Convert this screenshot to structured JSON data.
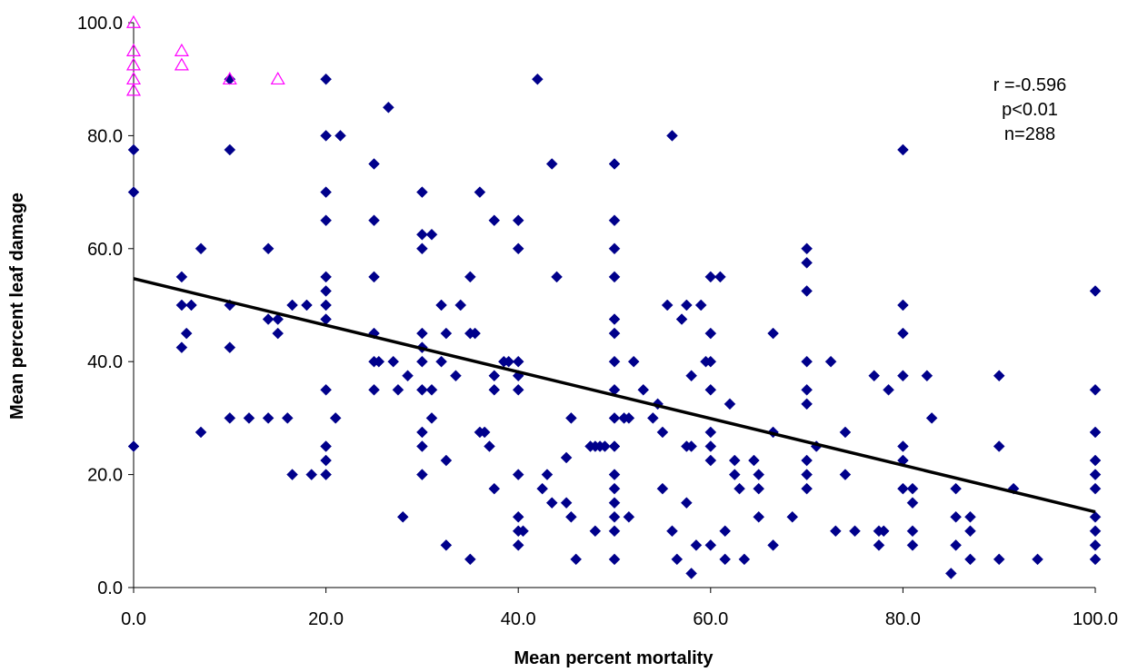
{
  "chart_data": {
    "type": "scatter",
    "xlabel": "Mean percent mortality",
    "ylabel": "Mean percent leaf damage",
    "xlim": [
      0,
      100
    ],
    "ylim": [
      0,
      100
    ],
    "x_ticks": [
      "0.0",
      "20.0",
      "40.0",
      "60.0",
      "80.0",
      "100.0"
    ],
    "y_ticks": [
      "0.0",
      "20.0",
      "40.0",
      "60.0",
      "80.0",
      "100.0"
    ],
    "annotations": [
      "r =-0.596",
      "p<0.01",
      "n=288"
    ],
    "grid": false,
    "legend": "none",
    "trendline": {
      "x": [
        0,
        100
      ],
      "y": [
        54.7,
        13.4
      ]
    },
    "series": [
      {
        "marker": "diamond",
        "color": "#00008b",
        "points": [
          [
            0,
            77.5
          ],
          [
            0,
            70
          ],
          [
            0,
            25
          ],
          [
            5,
            55
          ],
          [
            5,
            50
          ],
          [
            5,
            42.5
          ],
          [
            5.5,
            45
          ],
          [
            6,
            50
          ],
          [
            7,
            60
          ],
          [
            7,
            27.5
          ],
          [
            10,
            90
          ],
          [
            10,
            77.5
          ],
          [
            10,
            50
          ],
          [
            10,
            42.5
          ],
          [
            10,
            30
          ],
          [
            12,
            30
          ],
          [
            14,
            60
          ],
          [
            14,
            47.5
          ],
          [
            14,
            30
          ],
          [
            15,
            47.5
          ],
          [
            15,
            45
          ],
          [
            16,
            30
          ],
          [
            16.5,
            50
          ],
          [
            16.5,
            20
          ],
          [
            18,
            50
          ],
          [
            18.5,
            20
          ],
          [
            20,
            90
          ],
          [
            20,
            80
          ],
          [
            20,
            70
          ],
          [
            20,
            65
          ],
          [
            20,
            55
          ],
          [
            20,
            52.5
          ],
          [
            20,
            50
          ],
          [
            20,
            47.5
          ],
          [
            20,
            35
          ],
          [
            20,
            25
          ],
          [
            20,
            22.5
          ],
          [
            20,
            20
          ],
          [
            21,
            30
          ],
          [
            21.5,
            80
          ],
          [
            25,
            75
          ],
          [
            25,
            65
          ],
          [
            25,
            55
          ],
          [
            25,
            45
          ],
          [
            25,
            40
          ],
          [
            25,
            35
          ],
          [
            25.5,
            40
          ],
          [
            26.5,
            85
          ],
          [
            27,
            40
          ],
          [
            27.5,
            35
          ],
          [
            28,
            12.5
          ],
          [
            28.5,
            37.5
          ],
          [
            30,
            70
          ],
          [
            30,
            62.5
          ],
          [
            30,
            60
          ],
          [
            30,
            45
          ],
          [
            30,
            42.5
          ],
          [
            30,
            40
          ],
          [
            30,
            35
          ],
          [
            30,
            27.5
          ],
          [
            30,
            25
          ],
          [
            30,
            20
          ],
          [
            31,
            62.5
          ],
          [
            31,
            30
          ],
          [
            31,
            35
          ],
          [
            32,
            50
          ],
          [
            32,
            40
          ],
          [
            32.5,
            45
          ],
          [
            32.5,
            22.5
          ],
          [
            32.5,
            7.5
          ],
          [
            33.5,
            37.5
          ],
          [
            34,
            50
          ],
          [
            35,
            55
          ],
          [
            35,
            45
          ],
          [
            35,
            5
          ],
          [
            35.5,
            45
          ],
          [
            36,
            70
          ],
          [
            36,
            27.5
          ],
          [
            36.5,
            27.5
          ],
          [
            37,
            25
          ],
          [
            37.5,
            65
          ],
          [
            37.5,
            37.5
          ],
          [
            37.5,
            35
          ],
          [
            37.5,
            17.5
          ],
          [
            38.5,
            40
          ],
          [
            39,
            40
          ],
          [
            40,
            65
          ],
          [
            40,
            60
          ],
          [
            40,
            40
          ],
          [
            40,
            37.5
          ],
          [
            40,
            35
          ],
          [
            40,
            20
          ],
          [
            40,
            12.5
          ],
          [
            40,
            10
          ],
          [
            40,
            7.5
          ],
          [
            40.5,
            10
          ],
          [
            42,
            90
          ],
          [
            42.5,
            17.5
          ],
          [
            43,
            20
          ],
          [
            43.5,
            15
          ],
          [
            43.5,
            75
          ],
          [
            44,
            55
          ],
          [
            45,
            23
          ],
          [
            45,
            15
          ],
          [
            45.5,
            12.5
          ],
          [
            45.5,
            30
          ],
          [
            46,
            5
          ],
          [
            47.5,
            25
          ],
          [
            48,
            10
          ],
          [
            48,
            25
          ],
          [
            48.5,
            25
          ],
          [
            49,
            25
          ],
          [
            50,
            75
          ],
          [
            50,
            65
          ],
          [
            50,
            60
          ],
          [
            50,
            55
          ],
          [
            50,
            47.5
          ],
          [
            50,
            45
          ],
          [
            50,
            40
          ],
          [
            50,
            35
          ],
          [
            50,
            30
          ],
          [
            50,
            25
          ],
          [
            50,
            20
          ],
          [
            50,
            17.5
          ],
          [
            50,
            15
          ],
          [
            50,
            12.5
          ],
          [
            50,
            10
          ],
          [
            50,
            5
          ],
          [
            51,
            30
          ],
          [
            51.5,
            12.5
          ],
          [
            51.5,
            30
          ],
          [
            52,
            40
          ],
          [
            53,
            35
          ],
          [
            54,
            30
          ],
          [
            54.5,
            32.5
          ],
          [
            55,
            17.5
          ],
          [
            55,
            27.5
          ],
          [
            55.5,
            50
          ],
          [
            56,
            10
          ],
          [
            56,
            80
          ],
          [
            56.5,
            5
          ],
          [
            57,
            47.5
          ],
          [
            57.5,
            50
          ],
          [
            57.5,
            25
          ],
          [
            57.5,
            15
          ],
          [
            58,
            37.5
          ],
          [
            58,
            25
          ],
          [
            58,
            2.5
          ],
          [
            58.5,
            7.5
          ],
          [
            59,
            50
          ],
          [
            60,
            55
          ],
          [
            60,
            45
          ],
          [
            60,
            40
          ],
          [
            60,
            35
          ],
          [
            60,
            27.5
          ],
          [
            60,
            25
          ],
          [
            60,
            22.5
          ],
          [
            60,
            7.5
          ],
          [
            59.5,
            40
          ],
          [
            61,
            55
          ],
          [
            61.5,
            10
          ],
          [
            61.5,
            5
          ],
          [
            62,
            32.5
          ],
          [
            62.5,
            22.5
          ],
          [
            62.5,
            20
          ],
          [
            63,
            17.5
          ],
          [
            63.5,
            5
          ],
          [
            64.5,
            22.5
          ],
          [
            65,
            20
          ],
          [
            65,
            17.5
          ],
          [
            65,
            12.5
          ],
          [
            66.5,
            45
          ],
          [
            66.5,
            27.5
          ],
          [
            66.5,
            7.5
          ],
          [
            68.5,
            12.5
          ],
          [
            70,
            60
          ],
          [
            70,
            57.5
          ],
          [
            70,
            52.5
          ],
          [
            70,
            40
          ],
          [
            70,
            35
          ],
          [
            70,
            32.5
          ],
          [
            70,
            22.5
          ],
          [
            70,
            20
          ],
          [
            70,
            17.5
          ],
          [
            71,
            25
          ],
          [
            72.5,
            40
          ],
          [
            73,
            10
          ],
          [
            74,
            27.5
          ],
          [
            74,
            20
          ],
          [
            75,
            10
          ],
          [
            77,
            37.5
          ],
          [
            77.5,
            10
          ],
          [
            77.5,
            7.5
          ],
          [
            78,
            10
          ],
          [
            78.5,
            35
          ],
          [
            80,
            77.5
          ],
          [
            80,
            50
          ],
          [
            80,
            45
          ],
          [
            80,
            37.5
          ],
          [
            80,
            25
          ],
          [
            80,
            22.5
          ],
          [
            80,
            17.5
          ],
          [
            81,
            17.5
          ],
          [
            81,
            15
          ],
          [
            81,
            10
          ],
          [
            81,
            7.5
          ],
          [
            82.5,
            37.5
          ],
          [
            83,
            30
          ],
          [
            85,
            2.5
          ],
          [
            85.5,
            17.5
          ],
          [
            85.5,
            12.5
          ],
          [
            85.5,
            7.5
          ],
          [
            87,
            12.5
          ],
          [
            87,
            10
          ],
          [
            87,
            5
          ],
          [
            90,
            37.5
          ],
          [
            90,
            25
          ],
          [
            90,
            5
          ],
          [
            91.5,
            17.5
          ],
          [
            94,
            5
          ],
          [
            100,
            52.5
          ],
          [
            100,
            35
          ],
          [
            100,
            27.5
          ],
          [
            100,
            22.5
          ],
          [
            100,
            20
          ],
          [
            100,
            17.5
          ],
          [
            100,
            12.5
          ],
          [
            100,
            10
          ],
          [
            100,
            7.5
          ],
          [
            100,
            5
          ]
        ]
      },
      {
        "marker": "triangle-open",
        "color": "#ff00ff",
        "points": [
          [
            0,
            100
          ],
          [
            0,
            95
          ],
          [
            0,
            92.5
          ],
          [
            0,
            90
          ],
          [
            0,
            88
          ],
          [
            5,
            95
          ],
          [
            5,
            92.5
          ],
          [
            10,
            90
          ],
          [
            15,
            90
          ]
        ]
      }
    ]
  }
}
